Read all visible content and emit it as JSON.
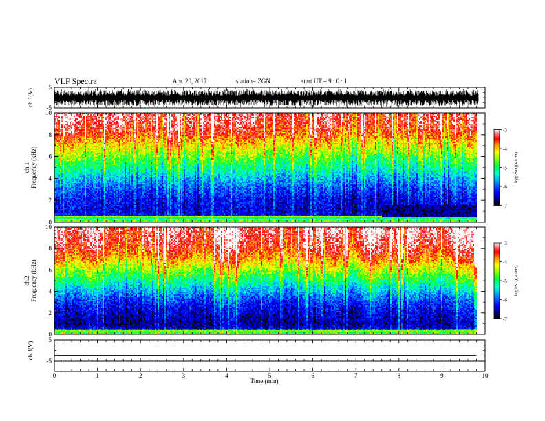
{
  "header": {
    "title": "VLF Spectra",
    "date": "Apr. 20, 2017",
    "station": "station= ZGN",
    "start": "start  UT  =   9 : 0  : 1"
  },
  "chart_data": [
    {
      "type": "line",
      "name": "ch1-waveform",
      "ylabel": "ch.1(V)",
      "ylim": [
        -5,
        5
      ],
      "yticks": [
        "5",
        "-5"
      ],
      "xlim": [
        0,
        10
      ],
      "note": "dense oscillating waveform, amplitude mostly within about -4.5 to 3.5 V"
    },
    {
      "type": "heatmap",
      "name": "ch1-spectrogram",
      "ylabel": [
        "ch.1",
        "Frequency  (kHz)"
      ],
      "ylim": [
        0,
        10
      ],
      "yticks": [
        "0",
        "2",
        "4",
        "6",
        "8",
        "10"
      ],
      "xlim": [
        0,
        9.8
      ],
      "colorbar": {
        "label": "log(PSD)(V²/Hz)",
        "ticks": [
          "-3",
          "-4",
          "-5",
          "-6",
          "-7"
        ],
        "range": [
          -7,
          -3
        ]
      },
      "profile_freq_khz": [
        0,
        0.3,
        0.5,
        1,
        2,
        3,
        4,
        5,
        6,
        7,
        8,
        9,
        10
      ],
      "profile_log_psd": [
        -5.0,
        -4.4,
        -6.2,
        -6.4,
        -6.3,
        -6.0,
        -5.6,
        -5.1,
        -4.6,
        -4.1,
        -3.6,
        -3.3,
        -3.2
      ],
      "features": [
        {
          "kind": "band",
          "freq_khz": 0.5,
          "log_psd": -4.5
        },
        {
          "kind": "low-patch",
          "t_min": [
            7.6,
            9.8
          ],
          "freq_khz": [
            0.5,
            1.6
          ],
          "log_psd": -7.0
        }
      ]
    },
    {
      "type": "heatmap",
      "name": "ch2-spectrogram",
      "ylabel": [
        "ch.2",
        "Frequency  (kHz)"
      ],
      "ylim": [
        0,
        10
      ],
      "yticks": [
        "0",
        "2",
        "4",
        "6",
        "8",
        "10"
      ],
      "xlim": [
        0,
        9.8
      ],
      "colorbar": {
        "label": "log(PSD)(V²/Hz)",
        "ticks": [
          "-3",
          "-4",
          "-5",
          "-6",
          "-7"
        ],
        "range": [
          -7,
          -3
        ]
      },
      "profile_freq_khz": [
        0,
        0.3,
        0.5,
        1,
        2,
        3,
        4,
        5,
        6,
        7,
        8,
        9,
        10
      ],
      "profile_log_psd": [
        -5.0,
        -4.5,
        -6.4,
        -6.6,
        -6.4,
        -6.1,
        -5.6,
        -5.0,
        -4.4,
        -3.8,
        -3.4,
        -3.2,
        -3.1
      ],
      "features": [
        {
          "kind": "band",
          "freq_khz": 0.3,
          "log_psd": -4.6
        }
      ]
    },
    {
      "type": "line",
      "name": "ch3-waveform",
      "ylabel": "ch.3(V)",
      "ylim": [
        -5,
        5
      ],
      "yticks": [
        "5",
        "-5"
      ],
      "xlim": [
        0,
        10
      ],
      "series": [
        {
          "x": [
            0,
            9.8
          ],
          "y": [
            -2.3,
            -2.3
          ]
        }
      ],
      "xlabel": "Time  (min)",
      "xticks": [
        "0",
        "1",
        "2",
        "3",
        "4",
        "5",
        "6",
        "7",
        "8",
        "9",
        "10"
      ]
    }
  ]
}
